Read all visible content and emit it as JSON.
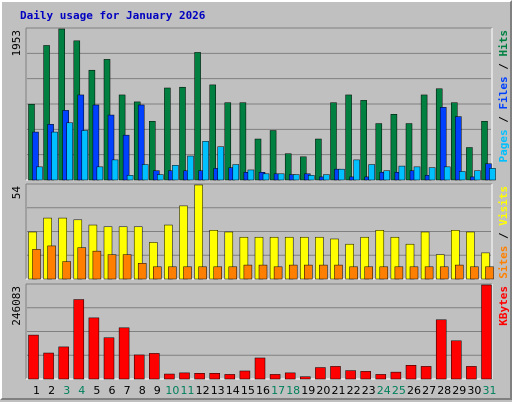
{
  "title": "Daily usage for January 2026",
  "colors": {
    "hits": "#008040",
    "files": "#0040ff",
    "pages": "#00c0ff",
    "sites": "#ff8000",
    "visits": "#ffff00",
    "kbytes": "#ff0000",
    "weekend_day": "#00805c",
    "weekday": "#000000",
    "title": "#0000c0",
    "panel": "#c0c0c0",
    "grid": "#808080"
  },
  "chart_data": [
    {
      "type": "bar",
      "categories": [
        "1",
        "2",
        "3",
        "4",
        "5",
        "6",
        "7",
        "8",
        "9",
        "10",
        "11",
        "12",
        "13",
        "14",
        "15",
        "16",
        "17",
        "18",
        "19",
        "20",
        "21",
        "22",
        "23",
        "24",
        "25",
        "26",
        "27",
        "28",
        "29",
        "30",
        "31"
      ],
      "weekend_days": [
        "3",
        "4",
        "10",
        "11",
        "17",
        "18",
        "24",
        "25",
        "31"
      ],
      "ymax_label": "1953",
      "ylim": [
        0,
        1953
      ],
      "legend": [
        "Pages",
        "Files",
        "Hits"
      ],
      "series": [
        {
          "name": "Hits",
          "color": "#008040",
          "values": [
            980,
            1740,
            1953,
            1800,
            1420,
            1560,
            1100,
            1010,
            760,
            1190,
            1200,
            1650,
            1230,
            1000,
            1000,
            530,
            640,
            340,
            300,
            530,
            1000,
            1100,
            1030,
            730,
            850,
            730,
            1100,
            1180,
            1000,
            420,
            760
          ]
        },
        {
          "name": "Files",
          "color": "#0040ff",
          "values": [
            620,
            720,
            900,
            1100,
            970,
            840,
            580,
            970,
            120,
            120,
            120,
            120,
            150,
            160,
            100,
            100,
            80,
            70,
            80,
            40,
            140,
            40,
            40,
            100,
            100,
            120,
            60,
            940,
            820,
            40,
            210
          ]
        },
        {
          "name": "Pages",
          "color": "#00c0ff",
          "values": [
            170,
            620,
            740,
            640,
            170,
            260,
            60,
            200,
            70,
            190,
            310,
            500,
            430,
            200,
            130,
            80,
            80,
            70,
            60,
            70,
            140,
            260,
            200,
            120,
            180,
            170,
            160,
            170,
            110,
            120,
            150
          ]
        }
      ]
    },
    {
      "type": "bar",
      "categories": [
        "1",
        "2",
        "3",
        "4",
        "5",
        "6",
        "7",
        "8",
        "9",
        "10",
        "11",
        "12",
        "13",
        "14",
        "15",
        "16",
        "17",
        "18",
        "19",
        "20",
        "21",
        "22",
        "23",
        "24",
        "25",
        "26",
        "27",
        "28",
        "29",
        "30",
        "31"
      ],
      "ymax_label": "54",
      "ylim": [
        0,
        54
      ],
      "legend": [
        "Sites",
        "Visits"
      ],
      "series": [
        {
          "name": "Visits",
          "color": "#ffff00",
          "values": [
            27,
            35,
            35,
            34,
            31,
            30,
            30,
            30,
            21,
            31,
            42,
            54,
            28,
            27,
            24,
            24,
            24,
            24,
            24,
            24,
            23,
            20,
            24,
            28,
            24,
            20,
            27,
            14,
            28,
            27,
            15
          ]
        },
        {
          "name": "Sites",
          "color": "#ff8000",
          "values": [
            17,
            19,
            10,
            18,
            16,
            14,
            14,
            9,
            7,
            7,
            7,
            7,
            7,
            7,
            8,
            8,
            7,
            8,
            8,
            8,
            8,
            7,
            7,
            7,
            7,
            7,
            7,
            7,
            8,
            7,
            7
          ]
        }
      ]
    },
    {
      "type": "bar",
      "categories": [
        "1",
        "2",
        "3",
        "4",
        "5",
        "6",
        "7",
        "8",
        "9",
        "10",
        "11",
        "12",
        "13",
        "14",
        "15",
        "16",
        "17",
        "18",
        "19",
        "20",
        "21",
        "22",
        "23",
        "24",
        "25",
        "26",
        "27",
        "28",
        "29",
        "30",
        "31"
      ],
      "ymax_label": "246083",
      "ylim": [
        0,
        246083
      ],
      "legend": [
        "KBytes"
      ],
      "series": [
        {
          "name": "KBytes",
          "color": "#ff0000",
          "values": [
            115000,
            68000,
            84000,
            208000,
            160000,
            108000,
            134000,
            63000,
            67000,
            13000,
            16000,
            15000,
            15000,
            12000,
            21000,
            55000,
            12000,
            16000,
            6000,
            30000,
            33000,
            22000,
            20000,
            12000,
            18000,
            36000,
            33000,
            155000,
            100000,
            33000,
            246083
          ]
        }
      ]
    }
  ]
}
